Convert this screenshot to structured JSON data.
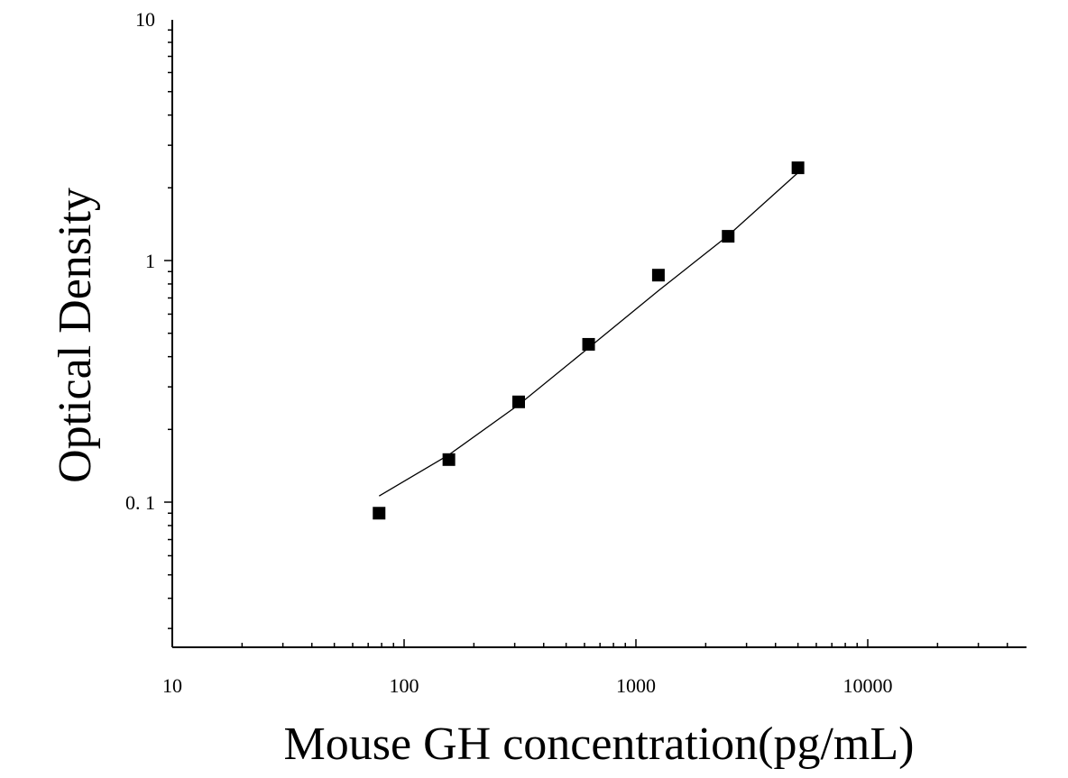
{
  "chart_data": {
    "type": "scatter",
    "title": "",
    "xlabel": "Mouse GH concentration(pg/mL)",
    "ylabel": "Optical Density",
    "x_scale": "log",
    "y_scale": "log",
    "xlim": [
      10,
      50000
    ],
    "ylim": [
      0.025,
      10
    ],
    "x_ticks": [
      10,
      100,
      1000,
      10000
    ],
    "x_tick_labels": [
      "10",
      "100",
      "1000",
      "10000"
    ],
    "y_ticks": [
      0.1,
      1,
      10
    ],
    "y_tick_labels": [
      "0. 1",
      "1",
      "10"
    ],
    "grid": false,
    "legend": "none",
    "points": {
      "x": [
        78,
        156,
        312,
        625,
        1250,
        2500,
        5000
      ],
      "y": [
        0.09,
        0.15,
        0.26,
        0.45,
        0.87,
        1.26,
        2.42
      ]
    },
    "fit_curve": {
      "x": [
        78,
        156,
        312,
        625,
        1250,
        2500,
        5000
      ],
      "y": [
        0.106,
        0.157,
        0.253,
        0.435,
        0.75,
        1.27,
        2.31
      ]
    },
    "colors": {
      "points": "#000000",
      "curve": "#000000",
      "axes": "#000000"
    }
  }
}
